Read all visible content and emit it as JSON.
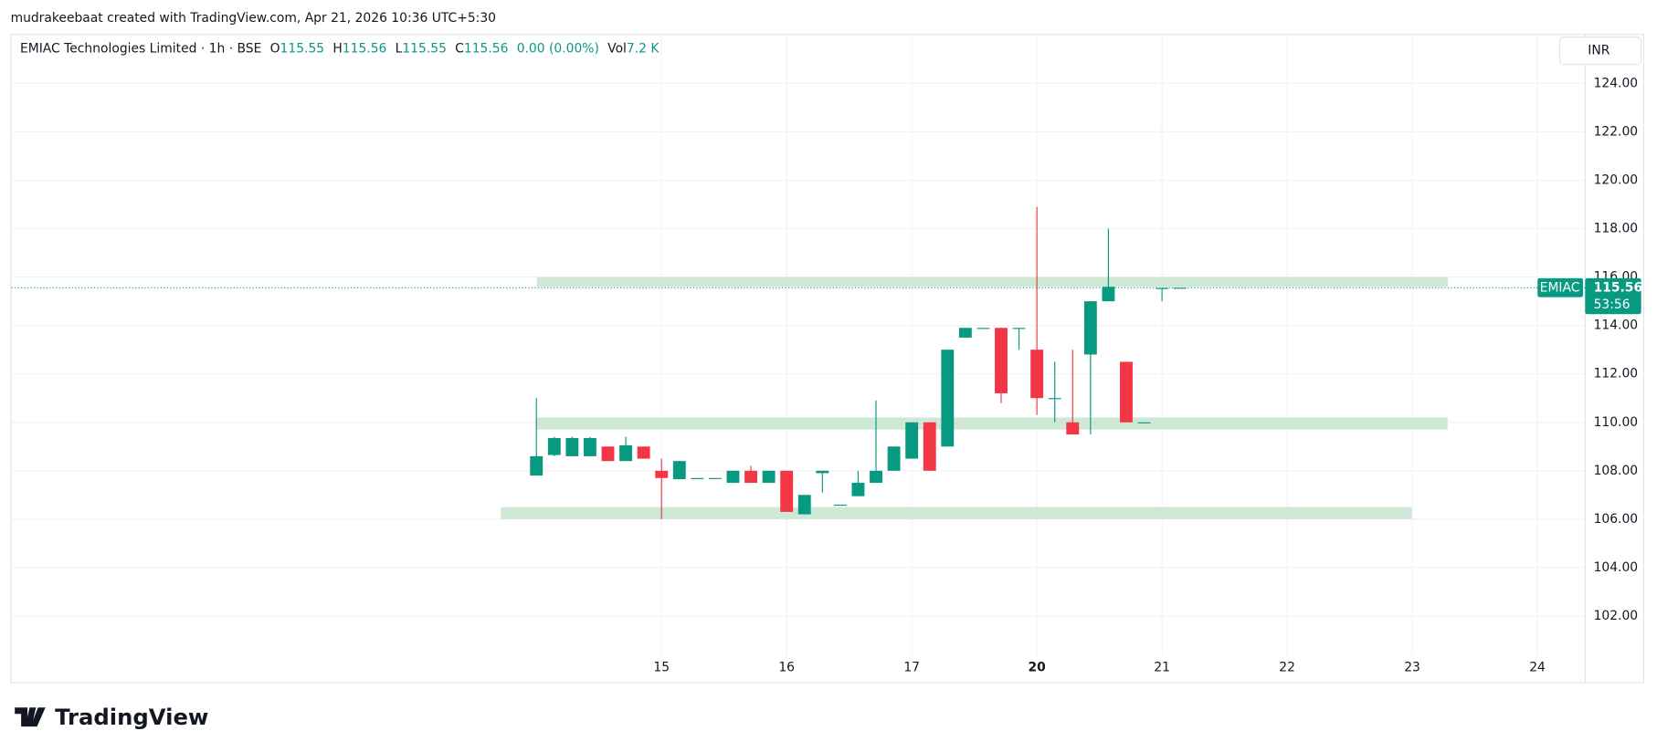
{
  "header": {
    "credit": "mudrakeebaat created with TradingView.com, Apr 21, 2026 10:36 UTC+5:30",
    "logo": "TradingView",
    "currency_button": "INR"
  },
  "chart_data": {
    "type": "candlestick",
    "title": "EMIAC Technologies Limited · 1h · BSE",
    "legend": {
      "o_label": "O",
      "o": 115.55,
      "h_label": "H",
      "h": 115.56,
      "l_label": "L",
      "l": 115.55,
      "c_label": "C",
      "c": 115.56,
      "change": "0.00 (0.00%)",
      "vol_label": "Vol",
      "vol": "7.2 K"
    },
    "series": [
      {
        "name": "EMIAC",
        "up_color": "#089981",
        "down_color": "#f23645",
        "open": [
          107.8,
          108.65,
          108.6,
          108.6,
          109.0,
          108.4,
          109.0,
          108.0,
          107.65,
          107.7,
          107.7,
          107.5,
          108.0,
          107.5,
          108.0,
          106.2,
          107.9,
          106.6,
          106.95,
          107.5,
          108.0,
          108.5,
          110.0,
          109.0,
          113.5,
          113.9,
          113.9,
          113.9,
          113.0,
          111.0,
          110.0,
          112.8,
          115.0,
          112.5,
          110.0,
          115.55,
          115.56
        ],
        "high": [
          111.0,
          109.4,
          109.4,
          109.4,
          109.0,
          109.4,
          109.0,
          108.5,
          108.4,
          107.7,
          107.7,
          108.0,
          108.2,
          108.0,
          108.0,
          107.0,
          108.0,
          106.6,
          108.0,
          110.9,
          109.0,
          110.0,
          110.0,
          113.0,
          113.9,
          113.9,
          113.9,
          113.9,
          118.9,
          112.5,
          113.0,
          115.0,
          118.0,
          112.5,
          110.0,
          115.56,
          115.56
        ],
        "low": [
          107.8,
          108.6,
          108.6,
          108.6,
          108.4,
          108.4,
          108.5,
          106.0,
          107.65,
          107.7,
          107.7,
          107.5,
          107.5,
          107.5,
          106.3,
          106.2,
          107.1,
          106.6,
          106.95,
          107.5,
          108.0,
          108.5,
          108.0,
          109.0,
          113.5,
          113.9,
          110.8,
          113.0,
          110.3,
          110.0,
          109.5,
          109.5,
          115.0,
          110.0,
          110.0,
          115.0,
          115.56
        ],
        "close": [
          108.6,
          109.35,
          109.35,
          109.35,
          108.4,
          109.05,
          108.5,
          107.7,
          108.4,
          107.7,
          107.7,
          108.0,
          107.5,
          108.0,
          106.3,
          107.0,
          108.0,
          106.6,
          107.5,
          108.0,
          109.0,
          110.0,
          108.0,
          113.0,
          113.9,
          113.9,
          111.2,
          113.9,
          111.0,
          111.0,
          109.5,
          115.0,
          115.6,
          110.0,
          110.0,
          115.55,
          115.56
        ]
      }
    ],
    "zones": [
      {
        "high": 116.0,
        "low": 115.6
      },
      {
        "high": 110.2,
        "low": 109.7
      },
      {
        "high": 106.5,
        "low": 106.0
      }
    ],
    "zone_color": "#cfe8d5",
    "x_labels": [
      "15",
      "16",
      "17",
      "20",
      "21",
      "22",
      "23",
      "24"
    ],
    "ylim": [
      100.4,
      126.0
    ],
    "yticks": [
      {
        "value": 102,
        "label": "102.00"
      },
      {
        "value": 104,
        "label": "104.00"
      },
      {
        "value": 106,
        "label": "106.00"
      },
      {
        "value": 108,
        "label": "108.00"
      },
      {
        "value": 110,
        "label": "110.00"
      },
      {
        "value": 112,
        "label": "112.00"
      },
      {
        "value": 114,
        "label": "114.00"
      },
      {
        "value": 116,
        "label": "116.00"
      },
      {
        "value": 118,
        "label": "118.00"
      },
      {
        "value": 120,
        "label": "120.00"
      },
      {
        "value": 122,
        "label": "122.00"
      },
      {
        "value": 124,
        "label": "124.00"
      }
    ],
    "grid": true,
    "price_tag": {
      "symbol": "EMIAC",
      "price": 115.56,
      "countdown": "53:56"
    }
  }
}
